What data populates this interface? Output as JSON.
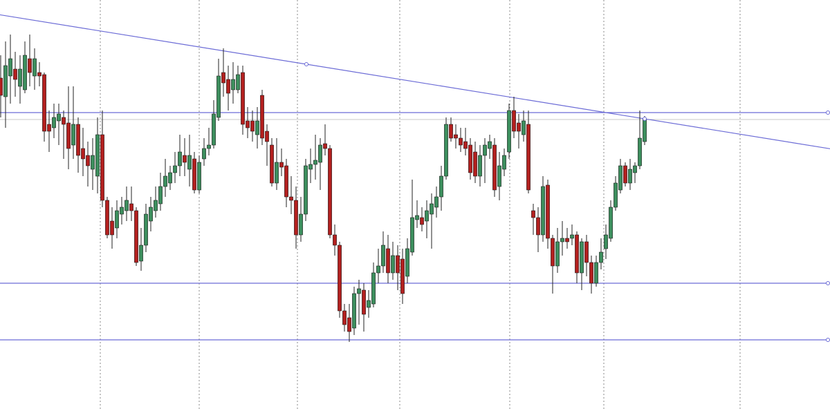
{
  "chart_data": {
    "type": "candlestick",
    "xlim": [
      0,
      1200
    ],
    "ylim": [
      5,
      600
    ],
    "up_color": "#3d8f5e",
    "down_color": "#b3201f",
    "xgrid": [
      145,
      288,
      430,
      578,
      737,
      873,
      1070
    ],
    "hlines": [
      437,
      190,
      108
    ],
    "hline_color": "#6b6bd6",
    "ref_line": 427,
    "ref_color": "#c8c8c8",
    "trendline": {
      "x": [
        443,
        932
      ],
      "y": [
        507,
        428
      ],
      "color": "#6b6bd6"
    },
    "x": [
      1,
      8,
      15,
      22,
      29,
      36,
      43,
      50,
      57,
      64,
      71,
      78,
      85,
      92,
      99,
      106,
      113,
      120,
      127,
      134,
      141,
      148,
      155,
      162,
      169,
      176,
      183,
      190,
      197,
      204,
      211,
      218,
      225,
      232,
      239,
      246,
      253,
      260,
      267,
      274,
      281,
      288,
      295,
      302,
      309,
      316,
      323,
      330,
      337,
      344,
      351,
      358,
      365,
      372,
      379,
      386,
      393,
      400,
      407,
      414,
      421,
      428,
      435,
      442,
      449,
      456,
      463,
      470,
      477,
      484,
      491,
      498,
      505,
      512,
      519,
      526,
      533,
      540,
      547,
      554,
      561,
      568,
      575,
      582,
      589,
      596,
      603,
      610,
      617,
      624,
      631,
      638,
      645,
      652,
      659,
      666,
      673,
      680,
      687,
      694,
      701,
      708,
      715,
      722,
      729,
      736,
      743,
      750,
      757,
      764,
      771,
      778,
      785,
      792,
      799,
      806,
      813,
      820,
      827,
      834,
      841,
      848,
      855,
      862,
      869,
      876,
      883,
      890,
      897,
      904,
      911,
      918,
      925,
      932
    ],
    "open": [
      487,
      460,
      490,
      500,
      475,
      470,
      515,
      490,
      495,
      492,
      420,
      415,
      425,
      430,
      422,
      390,
      420,
      385,
      375,
      355,
      345,
      405,
      310,
      280,
      270,
      290,
      295,
      305,
      295,
      222,
      245,
      280,
      295,
      305,
      330,
      335,
      350,
      360,
      375,
      355,
      370,
      325,
      370,
      385,
      390,
      430,
      495,
      485,
      470,
      470,
      495,
      425,
      425,
      405,
      462,
      410,
      390,
      335,
      365,
      360,
      315,
      310,
      260,
      290,
      355,
      362,
      365,
      392,
      385,
      260,
      245,
      150,
      140,
      125,
      175,
      180,
      155,
      160,
      205,
      215,
      240,
      205,
      230,
      225,
      200,
      235,
      282,
      285,
      280,
      290,
      300,
      315,
      345,
      420,
      405,
      400,
      395,
      390,
      380,
      345,
      375,
      385,
      390,
      330,
      355,
      380,
      440,
      422,
      405,
      420,
      295,
      285,
      260,
      332,
      255,
      215,
      250,
      255,
      255,
      260,
      205,
      250,
      220,
      190,
      220,
      240,
      255,
      300,
      325,
      360,
      335,
      350,
      360,
      395
    ],
    "high": [
      520,
      540,
      550,
      525,
      520,
      540,
      550,
      530,
      510,
      495,
      440,
      450,
      450,
      440,
      475,
      475,
      430,
      415,
      395,
      400,
      430,
      440,
      315,
      300,
      310,
      315,
      330,
      330,
      300,
      270,
      305,
      315,
      330,
      350,
      370,
      360,
      380,
      405,
      400,
      405,
      380,
      375,
      400,
      415,
      455,
      515,
      530,
      505,
      510,
      505,
      505,
      445,
      440,
      445,
      470,
      420,
      400,
      400,
      385,
      370,
      345,
      330,
      315,
      370,
      385,
      405,
      400,
      420,
      390,
      275,
      250,
      160,
      160,
      185,
      195,
      190,
      180,
      220,
      240,
      265,
      260,
      250,
      245,
      240,
      255,
      340,
      310,
      300,
      310,
      320,
      330,
      360,
      430,
      430,
      420,
      415,
      415,
      400,
      395,
      390,
      400,
      405,
      400,
      380,
      385,
      450,
      460,
      435,
      440,
      440,
      305,
      300,
      345,
      340,
      260,
      270,
      280,
      270,
      275,
      265,
      255,
      260,
      230,
      230,
      255,
      275,
      310,
      345,
      370,
      365,
      370,
      365,
      440,
      432
    ],
    "low": [
      430,
      415,
      450,
      460,
      450,
      465,
      475,
      470,
      475,
      395,
      380,
      400,
      390,
      370,
      355,
      370,
      350,
      345,
      330,
      325,
      320,
      300,
      255,
      240,
      255,
      275,
      280,
      280,
      215,
      208,
      235,
      265,
      285,
      295,
      315,
      325,
      335,
      345,
      345,
      330,
      320,
      320,
      360,
      375,
      385,
      425,
      460,
      440,
      450,
      465,
      405,
      400,
      395,
      385,
      390,
      360,
      330,
      325,
      345,
      300,
      290,
      240,
      250,
      280,
      335,
      340,
      325,
      375,
      255,
      230,
      140,
      120,
      105,
      115,
      130,
      120,
      140,
      155,
      190,
      205,
      190,
      195,
      180,
      160,
      190,
      230,
      270,
      265,
      255,
      240,
      285,
      295,
      340,
      395,
      385,
      380,
      375,
      340,
      335,
      330,
      335,
      370,
      315,
      310,
      345,
      370,
      400,
      385,
      395,
      320,
      260,
      235,
      250,
      240,
      175,
      205,
      230,
      240,
      245,
      190,
      180,
      200,
      175,
      185,
      210,
      225,
      250,
      295,
      320,
      330,
      325,
      335,
      355,
      390
    ],
    "close": [
      462,
      505,
      515,
      485,
      500,
      520,
      495,
      515,
      490,
      410,
      410,
      430,
      435,
      420,
      385,
      420,
      375,
      370,
      360,
      375,
      405,
      310,
      260,
      260,
      295,
      300,
      310,
      295,
      220,
      245,
      290,
      300,
      310,
      330,
      345,
      350,
      360,
      380,
      365,
      375,
      325,
      365,
      385,
      390,
      435,
      490,
      480,
      465,
      485,
      492,
      420,
      415,
      410,
      425,
      400,
      395,
      335,
      365,
      358,
      315,
      310,
      260,
      290,
      360,
      362,
      368,
      390,
      385,
      260,
      245,
      150,
      130,
      120,
      175,
      182,
      145,
      165,
      205,
      215,
      245,
      205,
      230,
      205,
      175,
      240,
      285,
      288,
      275,
      295,
      305,
      315,
      345,
      420,
      400,
      400,
      390,
      385,
      350,
      345,
      375,
      390,
      395,
      325,
      360,
      375,
      440,
      410,
      410,
      425,
      325,
      285,
      260,
      330,
      255,
      215,
      250,
      255,
      250,
      260,
      205,
      250,
      220,
      190,
      220,
      235,
      260,
      300,
      335,
      360,
      335,
      355,
      360,
      400,
      428
    ]
  }
}
